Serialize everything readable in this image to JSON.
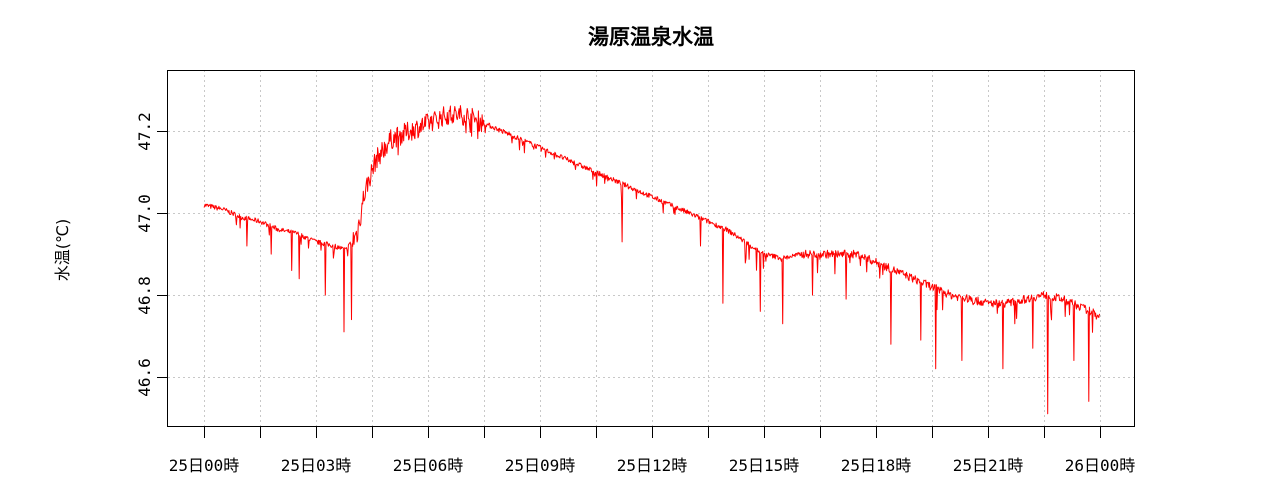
{
  "chart_data": {
    "type": "line",
    "title": "湯原温泉水温",
    "xlabel": "",
    "ylabel": "水温(℃)",
    "x_ticks": [
      "25日00時",
      "25日03時",
      "25日06時",
      "25日09時",
      "25日12時",
      "25日15時",
      "25日18時",
      "25日21時",
      "26日00時"
    ],
    "x_range_hours": [
      0,
      24
    ],
    "y_ticks": [
      46.6,
      46.8,
      47.0,
      47.2
    ],
    "y_tick_labels": [
      "46.6",
      "46.8",
      "47.0",
      "47.2"
    ],
    "ylim": [
      46.48,
      47.35
    ],
    "grid": true,
    "legend": "none",
    "colors": {
      "line": "#ff0000",
      "grid": "#c8c8c8",
      "frame": "#000000"
    },
    "series": [
      {
        "x_hours": [
          0,
          0.5,
          1,
          1.5,
          2,
          2.5,
          3,
          3.5,
          3.8,
          4.1,
          4.3,
          4.6,
          5,
          5.5,
          6,
          6.5,
          7,
          7.5,
          8,
          8.5,
          9,
          9.5,
          10,
          10.5,
          11,
          11.5,
          12,
          12.5,
          13,
          13.5,
          14,
          14.5,
          15,
          15.5,
          16,
          16.5,
          17,
          17.5,
          18,
          18.5,
          19,
          19.5,
          20,
          20.5,
          21,
          21.5,
          22,
          22.5,
          23,
          23.5,
          24
        ],
        "values": [
          47.02,
          47.01,
          46.99,
          46.98,
          46.96,
          46.95,
          46.93,
          46.92,
          46.91,
          46.95,
          47.05,
          47.13,
          47.18,
          47.2,
          47.22,
          47.24,
          47.24,
          47.22,
          47.2,
          47.18,
          47.16,
          47.14,
          47.12,
          47.1,
          47.08,
          47.06,
          47.04,
          47.02,
          47.0,
          46.98,
          46.96,
          46.93,
          46.9,
          46.89,
          46.9,
          46.9,
          46.9,
          46.9,
          46.88,
          46.86,
          46.84,
          46.82,
          46.8,
          46.79,
          46.78,
          46.78,
          46.79,
          46.8,
          46.79,
          46.77,
          46.75
        ]
      }
    ],
    "dips": [
      {
        "x_hours": 1.15,
        "value": 46.92
      },
      {
        "x_hours": 1.8,
        "value": 46.9
      },
      {
        "x_hours": 2.35,
        "value": 46.86
      },
      {
        "x_hours": 2.55,
        "value": 46.84
      },
      {
        "x_hours": 3.25,
        "value": 46.8
      },
      {
        "x_hours": 3.75,
        "value": 46.71
      },
      {
        "x_hours": 3.95,
        "value": 46.74
      },
      {
        "x_hours": 11.2,
        "value": 46.93
      },
      {
        "x_hours": 13.3,
        "value": 46.92
      },
      {
        "x_hours": 13.9,
        "value": 46.78
      },
      {
        "x_hours": 14.9,
        "value": 46.76
      },
      {
        "x_hours": 15.5,
        "value": 46.73
      },
      {
        "x_hours": 16.3,
        "value": 46.8
      },
      {
        "x_hours": 17.2,
        "value": 46.79
      },
      {
        "x_hours": 18.4,
        "value": 46.68
      },
      {
        "x_hours": 19.2,
        "value": 46.69
      },
      {
        "x_hours": 19.6,
        "value": 46.62
      },
      {
        "x_hours": 20.3,
        "value": 46.64
      },
      {
        "x_hours": 21.4,
        "value": 46.62
      },
      {
        "x_hours": 22.2,
        "value": 46.67
      },
      {
        "x_hours": 22.6,
        "value": 46.51
      },
      {
        "x_hours": 23.3,
        "value": 46.64
      },
      {
        "x_hours": 23.7,
        "value": 46.54
      }
    ]
  }
}
